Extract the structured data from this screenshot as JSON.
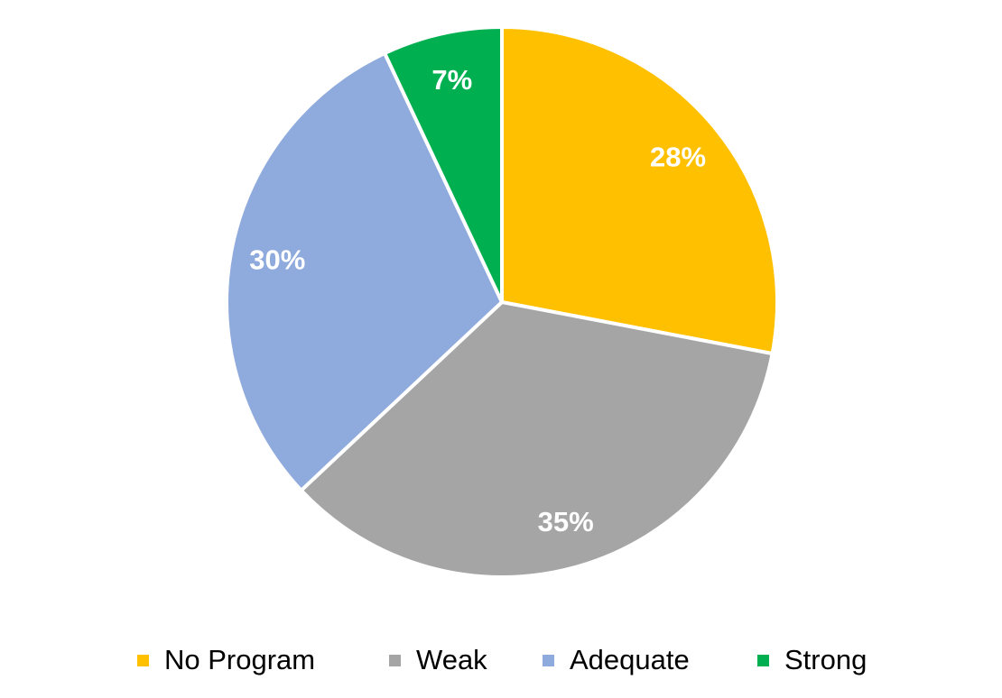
{
  "chart_data": {
    "type": "pie",
    "title": "",
    "start_angle_deg": 0,
    "direction": "clockwise",
    "legend_position": "bottom",
    "slices": [
      {
        "label": "No Program",
        "value": 28,
        "data_label": "28%",
        "color": "#FFC000"
      },
      {
        "label": "Weak",
        "value": 35,
        "data_label": "35%",
        "color": "#A5A5A5"
      },
      {
        "label": "Adequate",
        "value": 30,
        "data_label": "30%",
        "color": "#8FAADC"
      },
      {
        "label": "Strong",
        "value": 7,
        "data_label": "7%",
        "color": "#00B050"
      }
    ]
  }
}
